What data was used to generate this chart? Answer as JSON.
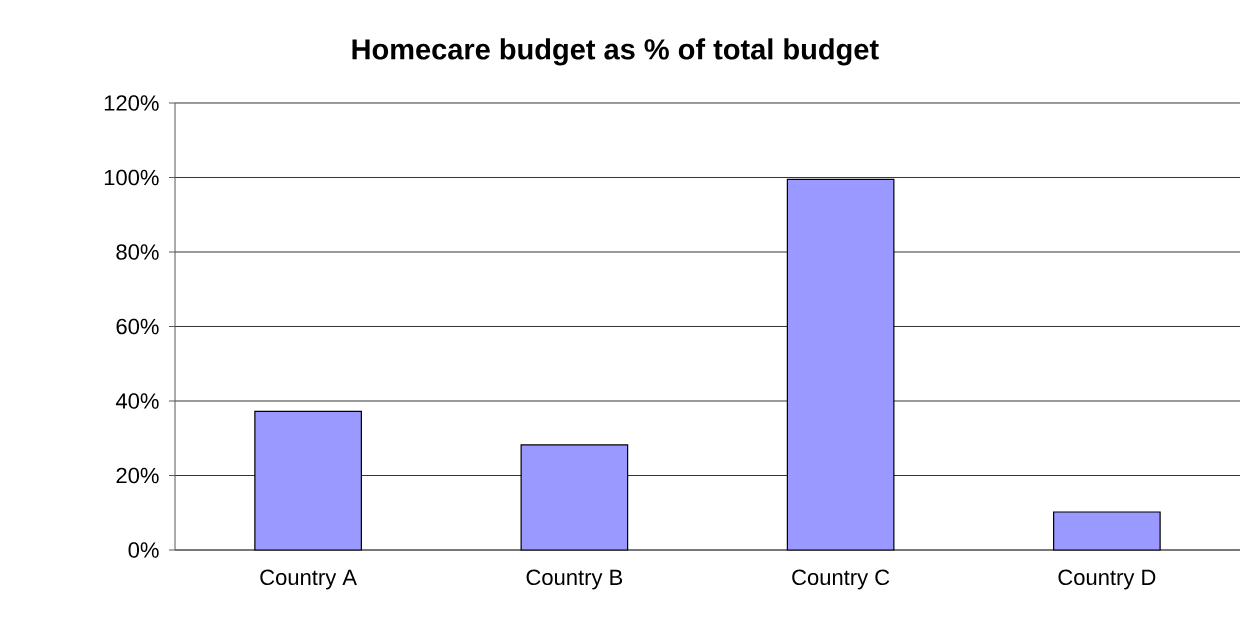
{
  "chart_data": {
    "type": "bar",
    "title": "Homecare budget as % of total budget",
    "categories": [
      "Country A",
      "Country B",
      "Country C",
      "Country D"
    ],
    "values": [
      37.2,
      28.2,
      99.5,
      10.2
    ],
    "color": "#9999ff",
    "ylim": [
      0,
      120
    ],
    "yticks": [
      {
        "value": 0,
        "label": "0%"
      },
      {
        "value": 20,
        "label": "20%"
      },
      {
        "value": 40,
        "label": "40%"
      },
      {
        "value": 60,
        "label": "60%"
      },
      {
        "value": 80,
        "label": "80%"
      },
      {
        "value": 100,
        "label": "100%"
      },
      {
        "value": 120,
        "label": "120%"
      }
    ],
    "grid": "y"
  }
}
